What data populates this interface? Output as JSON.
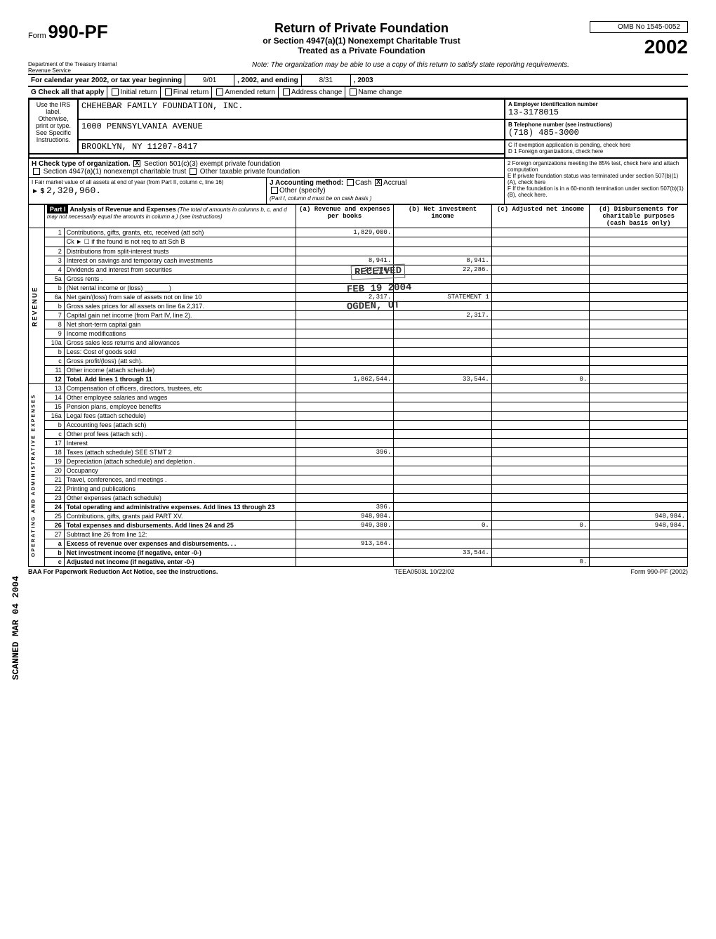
{
  "form": {
    "prefix": "Form",
    "number": "990-PF",
    "title": "Return of Private Foundation",
    "subtitle1": "or Section 4947(a)(1) Nonexempt Charitable Trust",
    "subtitle2": "Treated as a Private Foundation",
    "omb": "OMB No 1545-0052",
    "year": "2002",
    "dept": "Department of the Treasury\nInternal Revenue Service",
    "note": "Note: The organization may be able to use a copy of this return to satisfy state reporting requirements."
  },
  "calendar": {
    "label": "For calendar year 2002, or tax year beginning",
    "begin": "9/01",
    "mid": ", 2002, and ending",
    "end": "8/31",
    "endyear": ", 2003"
  },
  "checkG": {
    "label": "G Check all that apply",
    "opts": [
      "Initial return",
      "Final return",
      "Amended return",
      "Address change",
      "Name change"
    ]
  },
  "org": {
    "sideLabel": "Use the IRS label. Otherwise, print or type. See Specific Instructions.",
    "name": "CHEHEBAR FAMILY FOUNDATION, INC.",
    "addr1": "1000 PENNSYLVANIA AVENUE",
    "addr2": "BROOKLYN, NY 11207-8417",
    "einLabel": "A   Employer identification number",
    "ein": "13-3178015",
    "telLabel": "B   Telephone number (see instructions)",
    "tel": "(718) 485-3000",
    "c": "C   If exemption application is pending, check here",
    "d1": "D 1 Foreign organizations, check here",
    "d2": "2 Foreign organizations meeting the 85% test, check here and attach computation",
    "e": "E   If private foundation status was terminated under section 507(b)(1)(A), check here",
    "f": "F   If the foundation is in a 60-month termination under section 507(b)(1)(B), check here."
  },
  "H": {
    "label": "H   Check type of organization.",
    "opt1": "Section 501(c)(3) exempt private foundation",
    "opt2": "Section 4947(a)(1) nonexempt charitable trust",
    "opt3": "Other taxable private foundation"
  },
  "I": {
    "label": "I   Fair market value of all assets at end of year (from Part II, column c, line 16)",
    "arrow": "► $",
    "value": "2,320,960."
  },
  "J": {
    "label": "J  Accounting method:",
    "cash": "Cash",
    "accrual": "Accrual",
    "other": "Other (specify)",
    "note": "(Part I, column d must be on cash basis )"
  },
  "part1": {
    "label": "Part I",
    "title": "Analysis of Revenue and Expenses",
    "subtitle": "(The total of amounts in columns b, c, and d may not necessarily equal the amounts in column a.) (see instructions)",
    "cols": {
      "a": "(a) Revenue and expenses per books",
      "b": "(b) Net investment income",
      "c": "(c) Adjusted net income",
      "d": "(d) Disbursements for charitable purposes (cash basis only)"
    }
  },
  "sideRevenue": "REVENUE",
  "sideAdmin": "OPERATING AND ADMINISTRATIVE EXPENSES",
  "rows": [
    {
      "n": "1",
      "desc": "Contributions, gifts, grants, etc, received (att sch)",
      "a": "1,829,000.",
      "b": "",
      "c": "",
      "d": ""
    },
    {
      "n": "",
      "desc": "Ck ►  ☐  if the found is not req to att Sch B",
      "a": "",
      "b": "",
      "c": "",
      "d": ""
    },
    {
      "n": "2",
      "desc": "Distributions from split-interest trusts",
      "a": "",
      "b": "",
      "c": "",
      "d": ""
    },
    {
      "n": "3",
      "desc": "Interest on savings and temporary cash investments",
      "a": "8,941.",
      "b": "8,941.",
      "c": "",
      "d": ""
    },
    {
      "n": "4",
      "desc": "Dividends and interest from securities",
      "a": "22,286.",
      "b": "22,286.",
      "c": "",
      "d": ""
    },
    {
      "n": "5a",
      "desc": "Gross rents .",
      "a": "",
      "b": "",
      "c": "",
      "d": ""
    },
    {
      "n": "b",
      "desc": "(Net rental income or (loss) _______)",
      "a": "",
      "b": "",
      "c": "",
      "d": ""
    },
    {
      "n": "6a",
      "desc": "Net gain/(loss) from sale of assets not on line 10",
      "a": "2,317.",
      "b": "STATEMENT 1",
      "c": "",
      "d": ""
    },
    {
      "n": "b",
      "desc": "Gross sales prices for all assets on line 6a      2,317.",
      "a": "",
      "b": "",
      "c": "",
      "d": ""
    },
    {
      "n": "7",
      "desc": "Capital gain net income (from Part IV, line 2).",
      "a": "",
      "b": "2,317.",
      "c": "",
      "d": ""
    },
    {
      "n": "8",
      "desc": "Net short-term capital gain",
      "a": "",
      "b": "",
      "c": "",
      "d": ""
    },
    {
      "n": "9",
      "desc": "Income modifications",
      "a": "",
      "b": "",
      "c": "",
      "d": ""
    },
    {
      "n": "10a",
      "desc": "Gross sales less returns and allowances",
      "a": "",
      "b": "",
      "c": "",
      "d": ""
    },
    {
      "n": "b",
      "desc": "Less: Cost of goods sold",
      "a": "",
      "b": "",
      "c": "",
      "d": ""
    },
    {
      "n": "c",
      "desc": "Gross profit/(loss) (att sch).",
      "a": "",
      "b": "",
      "c": "",
      "d": ""
    },
    {
      "n": "11",
      "desc": "Other income (attach schedule)",
      "a": "",
      "b": "",
      "c": "",
      "d": ""
    },
    {
      "n": "12",
      "desc": "Total. Add lines 1 through 11",
      "a": "1,862,544.",
      "b": "33,544.",
      "c": "0.",
      "d": "",
      "bold": true
    },
    {
      "n": "13",
      "desc": "Compensation of officers, directors, trustees, etc",
      "a": "",
      "b": "",
      "c": "",
      "d": ""
    },
    {
      "n": "14",
      "desc": "Other employee salaries and wages",
      "a": "",
      "b": "",
      "c": "",
      "d": ""
    },
    {
      "n": "15",
      "desc": "Pension plans, employee benefits",
      "a": "",
      "b": "",
      "c": "",
      "d": ""
    },
    {
      "n": "16a",
      "desc": "Legal fees (attach schedule)",
      "a": "",
      "b": "",
      "c": "",
      "d": ""
    },
    {
      "n": "b",
      "desc": "Accounting fees (attach sch)",
      "a": "",
      "b": "",
      "c": "",
      "d": ""
    },
    {
      "n": "c",
      "desc": "Other prof fees (attach sch) .",
      "a": "",
      "b": "",
      "c": "",
      "d": ""
    },
    {
      "n": "17",
      "desc": "Interest",
      "a": "",
      "b": "",
      "c": "",
      "d": ""
    },
    {
      "n": "18",
      "desc": "Taxes (attach schedule)  SEE STMT 2",
      "a": "396.",
      "b": "",
      "c": "",
      "d": ""
    },
    {
      "n": "19",
      "desc": "Depreciation (attach schedule) and depletion .",
      "a": "",
      "b": "",
      "c": "",
      "d": ""
    },
    {
      "n": "20",
      "desc": "Occupancy",
      "a": "",
      "b": "",
      "c": "",
      "d": ""
    },
    {
      "n": "21",
      "desc": "Travel, conferences, and meetings .",
      "a": "",
      "b": "",
      "c": "",
      "d": ""
    },
    {
      "n": "22",
      "desc": "Printing and publications",
      "a": "",
      "b": "",
      "c": "",
      "d": ""
    },
    {
      "n": "23",
      "desc": "Other expenses (attach schedule)",
      "a": "",
      "b": "",
      "c": "",
      "d": ""
    },
    {
      "n": "24",
      "desc": "Total operating and administrative expenses. Add lines 13 through 23",
      "a": "396.",
      "b": "",
      "c": "",
      "d": "",
      "bold": true
    },
    {
      "n": "25",
      "desc": "Contributions, gifts, grants paid PART XV.",
      "a": "948,984.",
      "b": "",
      "c": "",
      "d": "948,984."
    },
    {
      "n": "26",
      "desc": "Total expenses and disbursements. Add lines 24 and 25",
      "a": "949,380.",
      "b": "0.",
      "c": "0.",
      "d": "948,984.",
      "bold": true
    },
    {
      "n": "27",
      "desc": "Subtract line 26 from line 12:",
      "a": "",
      "b": "",
      "c": "",
      "d": ""
    },
    {
      "n": "a",
      "desc": "Excess of revenue over expenses and disbursements. . .",
      "a": "913,164.",
      "b": "",
      "c": "",
      "d": "",
      "bold": true
    },
    {
      "n": "b",
      "desc": "Net investment income (if negative, enter -0-)",
      "a": "",
      "b": "33,544.",
      "c": "",
      "d": "",
      "bold": true
    },
    {
      "n": "c",
      "desc": "Adjusted net income (if negative, enter -0-)",
      "a": "",
      "b": "",
      "c": "0.",
      "d": "",
      "bold": true
    }
  ],
  "stamps": {
    "received": "RECEIVED",
    "date": "FEB 19 2004",
    "ogden": "OGDEN, UT",
    "scanned": "SCANNED MAR 04 2004"
  },
  "footer": {
    "left": "BAA For Paperwork Reduction Act Notice, see the instructions.",
    "mid": "TEEA0503L   10/22/02",
    "right": "Form 990-PF (2002)"
  }
}
